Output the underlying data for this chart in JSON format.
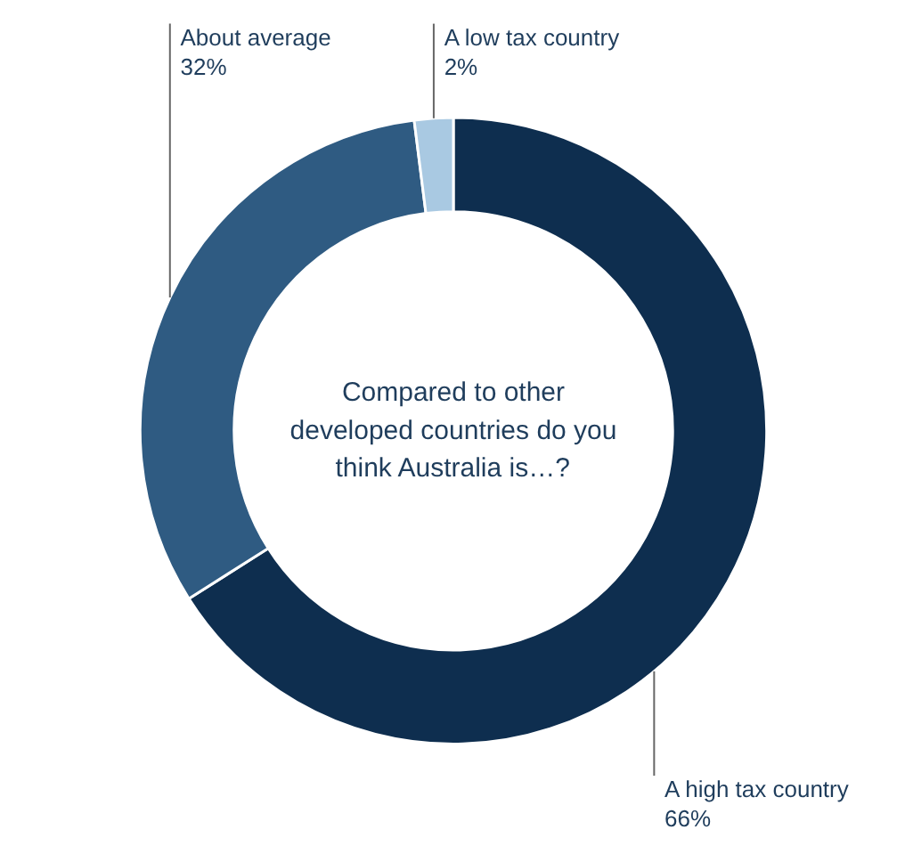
{
  "chart_data": {
    "type": "donut",
    "title": "Compared to other developed countries do you think Australia is…?",
    "categories": [
      "A high tax country",
      "About average",
      "A low tax country"
    ],
    "values": [
      66,
      32,
      2
    ],
    "colors": [
      "#0e2e4f",
      "#2f5b82",
      "#a9c9e2"
    ],
    "value_labels": [
      "66%",
      "32%",
      "2%"
    ],
    "legend": false
  }
}
